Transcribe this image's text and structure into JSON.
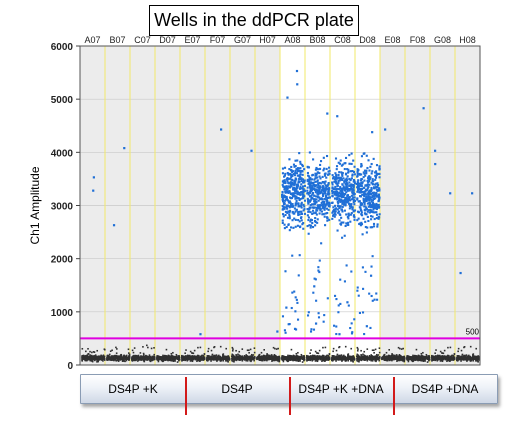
{
  "title": "Wells in the ddPCR plate",
  "chart_data": {
    "type": "scatter",
    "ylabel": "Ch1 Amplitude",
    "ylim": [
      0,
      6000
    ],
    "yticks": [
      0,
      1000,
      2000,
      3000,
      4000,
      5000,
      6000
    ],
    "wells": [
      "A07",
      "B07",
      "C07",
      "D07",
      "E07",
      "F07",
      "G07",
      "H07",
      "A08",
      "B08",
      "C08",
      "D08",
      "E08",
      "F08",
      "G08",
      "H08"
    ],
    "threshold": {
      "value": 500,
      "label": "500",
      "color": "#e000e0"
    },
    "positive_color": "#1f6fd6",
    "negative_color": "#303030",
    "highlight_wells": [
      "A08",
      "B08",
      "C08",
      "D08"
    ],
    "dense_band": {
      "wells": [
        "A08",
        "B08",
        "C08",
        "D08"
      ],
      "y_range": [
        2000,
        4500
      ],
      "approx_center": 3300
    },
    "negative_band": {
      "y_range": [
        0,
        250
      ]
    },
    "outliers": [
      {
        "well": "A07",
        "y": 3300
      },
      {
        "well": "A07",
        "y": 3550
      },
      {
        "well": "B07",
        "y": 4100
      },
      {
        "well": "B07",
        "y": 2650
      },
      {
        "well": "E07",
        "y": 600
      },
      {
        "well": "F07",
        "y": 4450
      },
      {
        "well": "G07",
        "y": 4050
      },
      {
        "well": "H07",
        "y": 650
      },
      {
        "well": "E08",
        "y": 4450
      },
      {
        "well": "F08",
        "y": 4850
      },
      {
        "well": "G08",
        "y": 3800
      },
      {
        "well": "G08",
        "y": 4050
      },
      {
        "well": "G08",
        "y": 3250
      },
      {
        "well": "H08",
        "y": 3250
      },
      {
        "well": "H08",
        "y": 1750
      },
      {
        "well": "A08",
        "y": 5550
      },
      {
        "well": "A08",
        "y": 5300
      },
      {
        "well": "A08",
        "y": 5050
      },
      {
        "well": "B08",
        "y": 4750
      },
      {
        "well": "C08",
        "y": 4700
      },
      {
        "well": "D08",
        "y": 4400
      },
      {
        "well": "A08",
        "y": 1100
      },
      {
        "well": "B08",
        "y": 800
      },
      {
        "well": "C08",
        "y": 600
      },
      {
        "well": "D08",
        "y": 750
      },
      {
        "well": "A08",
        "y": 700
      },
      {
        "well": "B08",
        "y": 1500
      },
      {
        "well": "C08",
        "y": 1200
      },
      {
        "well": "D08",
        "y": 1700
      }
    ],
    "group_labels": [
      "DS4P +K",
      "DS4P",
      "DS4P +K +DNA",
      "DS4P +DNA"
    ]
  }
}
